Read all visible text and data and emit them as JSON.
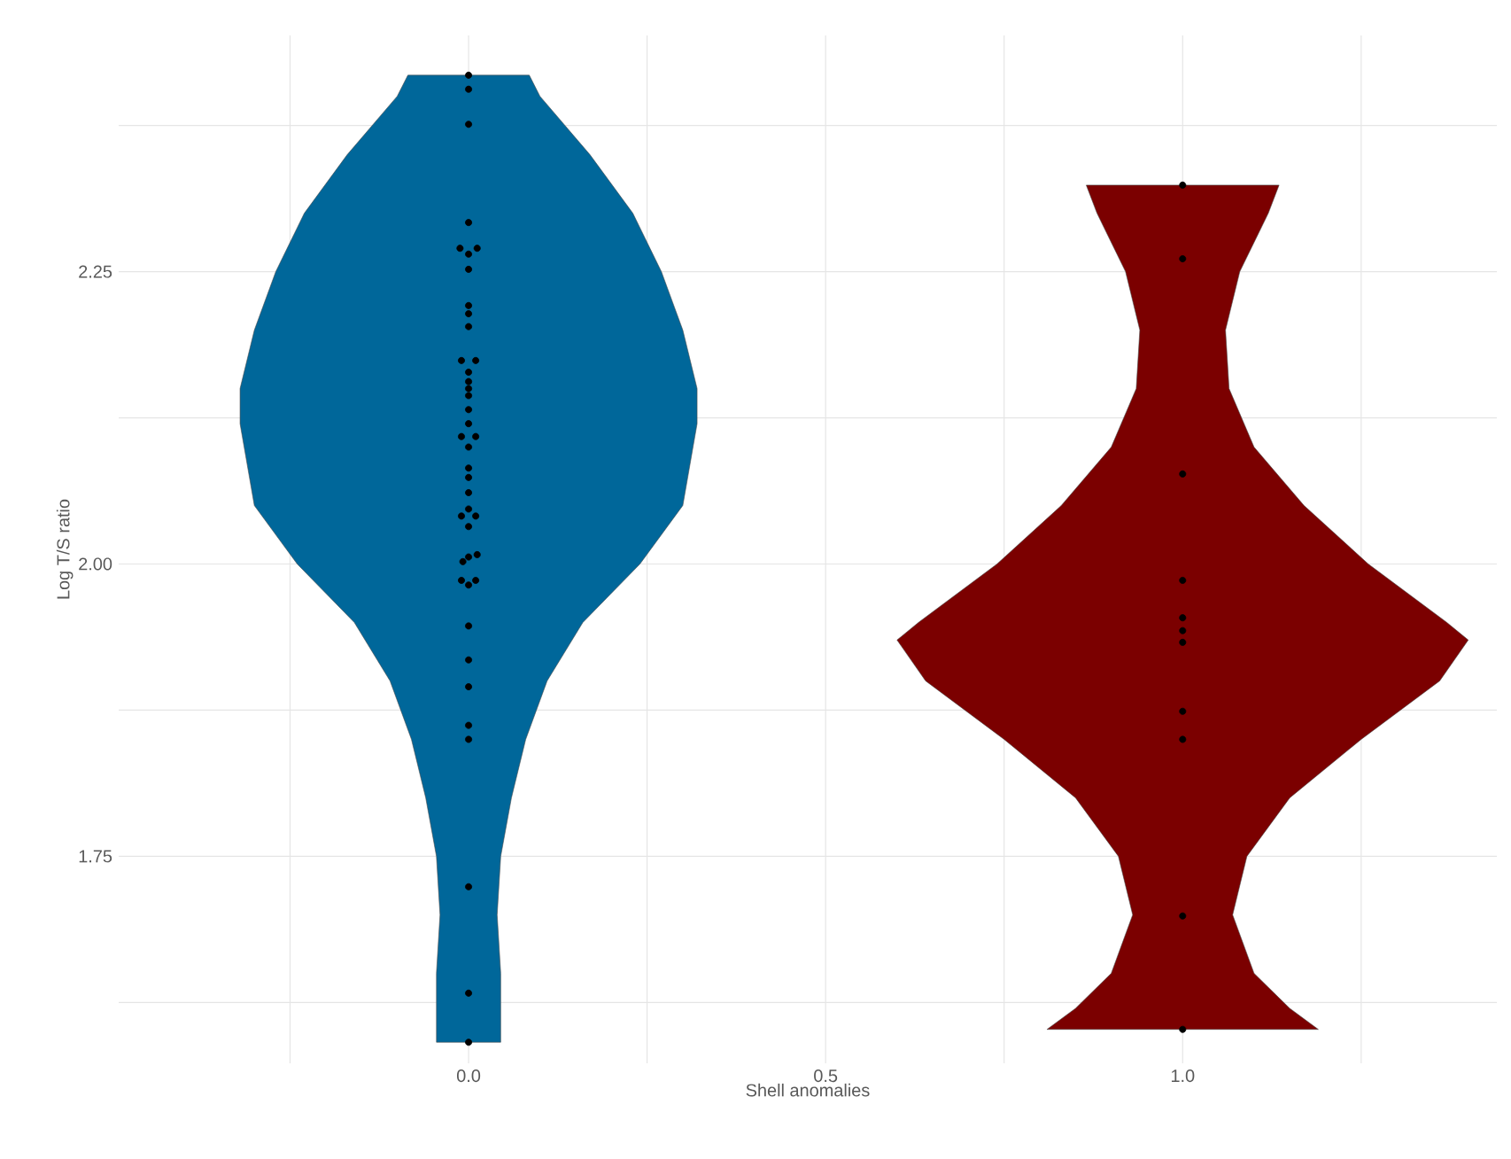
{
  "chart_data": {
    "type": "scatter",
    "xlabel": "Shell anomalies",
    "ylabel": "Log T/S ratio",
    "xlim": [
      -0.49,
      1.44
    ],
    "ylim": [
      1.573,
      2.452
    ],
    "xticks": [
      {
        "value": -0.25,
        "label": null
      },
      {
        "value": 0,
        "label": "0.0"
      },
      {
        "value": 0.25,
        "label": null
      },
      {
        "value": 0.5,
        "label": "0.5"
      },
      {
        "value": 0.75,
        "label": null
      },
      {
        "value": 1,
        "label": "1.0"
      },
      {
        "value": 1.25,
        "label": null
      }
    ],
    "yticks": [
      {
        "value": 1.625,
        "label": null
      },
      {
        "value": 1.75,
        "label": "1.75"
      },
      {
        "value": 1.875,
        "label": null
      },
      {
        "value": 2,
        "label": "2.00"
      },
      {
        "value": 2.125,
        "label": null
      },
      {
        "value": 2.25,
        "label": "2.25"
      },
      {
        "value": 2.375,
        "label": null
      }
    ],
    "grid": true,
    "series": [
      {
        "type": "area",
        "color": "#00679a",
        "x": [
          0.045,
          0.045,
          0.04,
          0.045,
          0.06,
          0.08,
          0.11,
          0.16,
          0.24,
          0.3,
          0.32,
          0.32,
          0.3,
          0.27,
          0.23,
          0.17,
          0.1,
          0.085,
          -0.085,
          -0.1,
          -0.17,
          -0.23,
          -0.27,
          -0.3,
          -0.32,
          -0.32,
          -0.3,
          -0.24,
          -0.16,
          -0.11,
          -0.08,
          -0.06,
          -0.045,
          -0.04,
          -0.045,
          -0.045
        ],
        "values": [
          1.591,
          1.65,
          1.7,
          1.75,
          1.8,
          1.85,
          1.9,
          1.95,
          2.0,
          2.05,
          2.12,
          2.15,
          2.2,
          2.25,
          2.3,
          2.35,
          2.4,
          2.418,
          2.418,
          2.4,
          2.35,
          2.3,
          2.25,
          2.2,
          2.15,
          2.12,
          2.05,
          2.0,
          1.95,
          1.9,
          1.85,
          1.8,
          1.75,
          1.7,
          1.65,
          1.591
        ]
      },
      {
        "type": "area",
        "color": "#7b0000",
        "x": [
          1.19,
          1.15,
          1.1,
          1.07,
          1.09,
          1.15,
          1.25,
          1.36,
          1.4,
          1.37,
          1.26,
          1.17,
          1.1,
          1.065,
          1.06,
          1.08,
          1.12,
          1.135,
          0.865,
          0.88,
          0.92,
          0.94,
          0.935,
          0.9,
          0.83,
          0.74,
          0.63,
          0.6,
          0.64,
          0.75,
          0.85,
          0.91,
          0.93,
          0.9,
          0.85,
          0.81
        ],
        "values": [
          1.602,
          1.62,
          1.65,
          1.7,
          1.75,
          1.8,
          1.85,
          1.9,
          1.935,
          1.95,
          2.0,
          2.05,
          2.1,
          2.15,
          2.2,
          2.25,
          2.3,
          2.324,
          2.324,
          2.3,
          2.25,
          2.2,
          2.15,
          2.1,
          2.05,
          2.0,
          1.95,
          1.935,
          1.9,
          1.85,
          1.8,
          1.75,
          1.7,
          1.65,
          1.62,
          1.602
        ]
      },
      {
        "type": "scatter",
        "color": "#000000",
        "marker": "circle",
        "x": [
          0,
          0,
          0,
          0,
          -0.012,
          0.012,
          0,
          0,
          0,
          0,
          0,
          -0.01,
          0.01,
          0,
          0,
          0,
          0,
          0,
          0,
          -0.01,
          0.01,
          0,
          0,
          0,
          0,
          0,
          -0.01,
          0.01,
          0,
          0.012,
          0,
          -0.008,
          -0.01,
          0.01,
          0,
          0,
          0,
          0,
          0,
          0,
          0,
          0,
          0
        ],
        "values": [
          2.418,
          2.406,
          2.376,
          2.292,
          2.27,
          2.27,
          2.265,
          2.252,
          2.221,
          2.214,
          2.203,
          2.174,
          2.174,
          2.164,
          2.156,
          2.15,
          2.144,
          2.132,
          2.12,
          2.109,
          2.109,
          2.1,
          2.082,
          2.074,
          2.061,
          2.047,
          2.041,
          2.041,
          2.032,
          2.008,
          2.006,
          2.002,
          1.986,
          1.986,
          1.982,
          1.947,
          1.918,
          1.895,
          1.862,
          1.85,
          1.724,
          1.633,
          1.591
        ]
      },
      {
        "type": "scatter",
        "color": "#000000",
        "marker": "circle",
        "x": [
          1,
          1,
          1,
          1,
          1,
          1,
          1,
          1,
          1,
          1,
          1
        ],
        "values": [
          2.324,
          2.261,
          2.077,
          1.986,
          1.954,
          1.943,
          1.933,
          1.874,
          1.85,
          1.699,
          1.602
        ]
      }
    ]
  }
}
